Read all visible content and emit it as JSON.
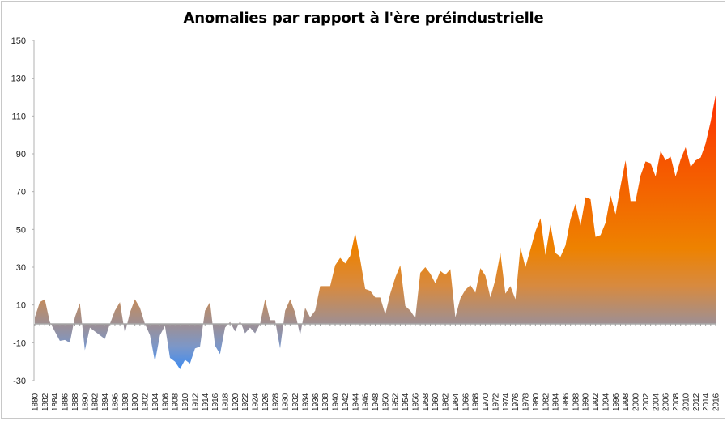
{
  "chart_data": {
    "type": "area",
    "title": "Anomalies par rapport à l'ère préindustrielle",
    "xlabel": "",
    "ylabel": "",
    "ylim": [
      -30,
      150
    ],
    "yticks": [
      150,
      130,
      110,
      90,
      70,
      50,
      30,
      10,
      -10,
      -30
    ],
    "xtick_labels": [
      "1880",
      "1882",
      "1884",
      "1886",
      "1888",
      "1890",
      "1892",
      "1894",
      "1896",
      "1898",
      "1900",
      "1902",
      "1904",
      "1906",
      "1908",
      "1910",
      "1912",
      "1914",
      "1916",
      "1918",
      "1920",
      "1922",
      "1924",
      "1926",
      "1928",
      "1930",
      "1932",
      "1934",
      "1936",
      "1938",
      "1940",
      "1942",
      "1944",
      "1946",
      "1948",
      "1950",
      "1952",
      "1954",
      "1956",
      "1958",
      "1960",
      "1962",
      "1964",
      "1966",
      "1968",
      "1970",
      "1972",
      "1974",
      "1976",
      "1978",
      "1980",
      "1982",
      "1984",
      "1986",
      "1988",
      "1990",
      "1992",
      "1994",
      "1996",
      "1998",
      "2000",
      "2002",
      "2004",
      "2006",
      "2008",
      "2010",
      "2012",
      "2014",
      "2016"
    ],
    "grid": false,
    "legend": null,
    "x_start": 1880,
    "x_end": 2016,
    "series": [
      {
        "name": "Anomalies",
        "fill": "gradient",
        "gradient_stops": [
          {
            "value": 121,
            "color": "#ff3000"
          },
          {
            "value": 85,
            "color": "#f65600"
          },
          {
            "value": 40,
            "color": "#ee8200"
          },
          {
            "value": 20,
            "color": "#d78a40"
          },
          {
            "value": 0,
            "color": "#9e8f93"
          },
          {
            "value": -12,
            "color": "#7c97c8"
          },
          {
            "value": -24,
            "color": "#3f8cf0"
          }
        ],
        "values": [
          3.5,
          11.5,
          13,
          1,
          -4,
          -9,
          -8.5,
          -10,
          3.5,
          11,
          -14,
          -2,
          -4,
          -6,
          -8,
          0,
          7,
          11.5,
          -5,
          6,
          13,
          8.5,
          0,
          -6,
          -20,
          -6,
          -1,
          -18,
          -20,
          -24,
          -19,
          -21,
          -13,
          -12,
          7,
          11.5,
          -11.5,
          -16,
          -2,
          1,
          -4,
          1.5,
          -5,
          -2,
          -5,
          0,
          13,
          2,
          2,
          -13,
          7,
          13,
          6,
          -6,
          8.5,
          3.5,
          7,
          20,
          20,
          20,
          31,
          35,
          32,
          36,
          48,
          34,
          18.5,
          17.5,
          14,
          14,
          5,
          16,
          24.5,
          31,
          9.5,
          7,
          3,
          27,
          30,
          26.5,
          21.5,
          28,
          26,
          29,
          3.5,
          13.5,
          18,
          20.5,
          16.5,
          29.5,
          25.5,
          14,
          23.5,
          37.5,
          16,
          20,
          13,
          40.5,
          30,
          39.5,
          49,
          56,
          36.5,
          52.5,
          37.5,
          35.5,
          41.5,
          55.5,
          63.5,
          52,
          67,
          66,
          46,
          47,
          53.5,
          68,
          58,
          73,
          86.5,
          65,
          65,
          78.5,
          86,
          85,
          78,
          91.5,
          86.5,
          88.5,
          78,
          87,
          93.5,
          83,
          86.5,
          88,
          95.5,
          107,
          121
        ]
      }
    ]
  }
}
